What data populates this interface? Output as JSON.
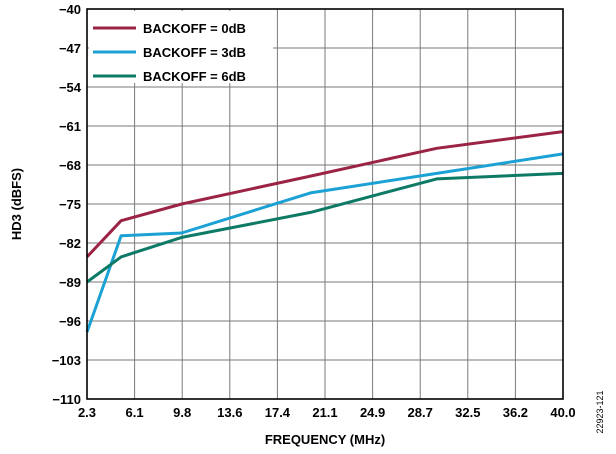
{
  "chart_data": {
    "type": "line",
    "xlabel": "FREQUENCY (MHz)",
    "ylabel": "HD3 (dBFS)",
    "xlim": [
      2.3,
      40.0
    ],
    "ylim": [
      -110,
      -40
    ],
    "x_ticks": [
      "2.3",
      "6.1",
      "9.8",
      "13.6",
      "17.4",
      "21.1",
      "24.9",
      "28.7",
      "32.5",
      "36.2",
      "40.0"
    ],
    "y_ticks": [
      "−40",
      "−47",
      "−54",
      "−61",
      "−68",
      "−75",
      "−82",
      "−89",
      "−96",
      "−103",
      "−110"
    ],
    "y_tick_values": [
      -40,
      -47,
      -54,
      -61,
      -68,
      -75,
      -82,
      -89,
      -96,
      -103,
      -110
    ],
    "grid": true,
    "legend_position": "top-left",
    "figure_id": "22923-121",
    "series": [
      {
        "name": "BACKOFF = 0dB",
        "color": "#9b2343",
        "x": [
          2.3,
          5.0,
          9.8,
          20.0,
          30.0,
          40.0
        ],
        "y": [
          -84.5,
          -78.0,
          -75.0,
          -70.0,
          -65.0,
          -62.0
        ]
      },
      {
        "name": "BACKOFF = 3dB",
        "color": "#1ba1d4",
        "x": [
          2.3,
          5.0,
          9.8,
          20.0,
          30.0,
          40.0
        ],
        "y": [
          -98.0,
          -80.7,
          -80.2,
          -73.0,
          -69.5,
          -66.0
        ]
      },
      {
        "name": "BACKOFF = 6dB",
        "color": "#0d7a66",
        "x": [
          2.3,
          5.0,
          9.8,
          20.0,
          30.0,
          40.0
        ],
        "y": [
          -89.0,
          -84.5,
          -81.0,
          -76.5,
          -70.5,
          -69.5
        ]
      }
    ]
  }
}
